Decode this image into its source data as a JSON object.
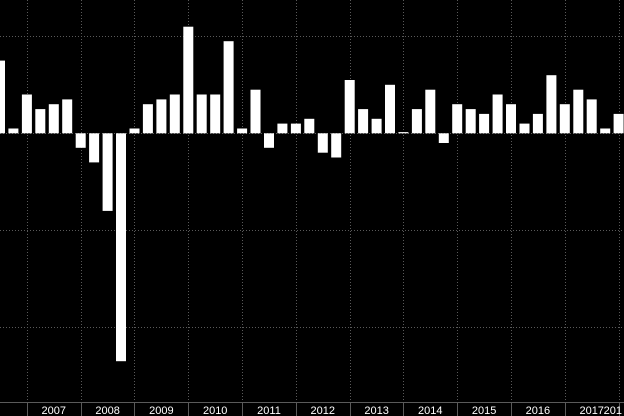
{
  "chart_data": {
    "type": "bar",
    "title": "",
    "xlabel": "",
    "ylabel": "",
    "x_ticks": [
      "2007",
      "2008",
      "2009",
      "2010",
      "2011",
      "2012",
      "2013",
      "2014",
      "2015",
      "2016",
      "2017",
      "201"
    ],
    "x_range": [
      2006.5,
      2018.1
    ],
    "ylim": [
      -11,
      5.5
    ],
    "y_gridlines": [
      -8,
      -4,
      0,
      4
    ],
    "grid": true,
    "legend": "none",
    "series": [
      {
        "x": [
          2006.5,
          2006.75,
          2007.0,
          2007.25,
          2007.5,
          2007.75,
          2008.0,
          2008.25,
          2008.5,
          2008.75,
          2009.0,
          2009.25,
          2009.5,
          2009.75,
          2010.0,
          2010.25,
          2010.5,
          2010.75,
          2011.0,
          2011.25,
          2011.5,
          2011.75,
          2012.0,
          2012.25,
          2012.5,
          2012.75,
          2013.0,
          2013.25,
          2013.5,
          2013.75,
          2014.0,
          2014.25,
          2014.5,
          2014.75,
          2015.0,
          2015.25,
          2015.5,
          2015.75,
          2016.0,
          2016.25,
          2016.5,
          2016.75,
          2017.0,
          2017.25,
          2017.5,
          2017.75,
          2018.0
        ],
        "values": [
          3.0,
          0.2,
          1.6,
          1.0,
          1.2,
          1.4,
          -0.6,
          -1.2,
          -3.2,
          -9.4,
          0.2,
          1.2,
          1.4,
          1.6,
          4.4,
          1.6,
          1.6,
          3.8,
          0.2,
          1.8,
          -0.6,
          0.4,
          0.4,
          0.6,
          -0.8,
          -1.0,
          2.2,
          1.0,
          0.6,
          2.0,
          0.05,
          1.0,
          1.8,
          -0.4,
          1.2,
          1.0,
          0.8,
          1.6,
          1.2,
          0.4,
          0.8,
          2.4,
          1.2,
          1.8,
          1.4,
          0.2,
          0.8
        ]
      }
    ],
    "colors": {
      "background": "#000000",
      "bars": "#ffffff",
      "grid": "#5a5a5a",
      "tick_text": "#ffffff"
    }
  }
}
